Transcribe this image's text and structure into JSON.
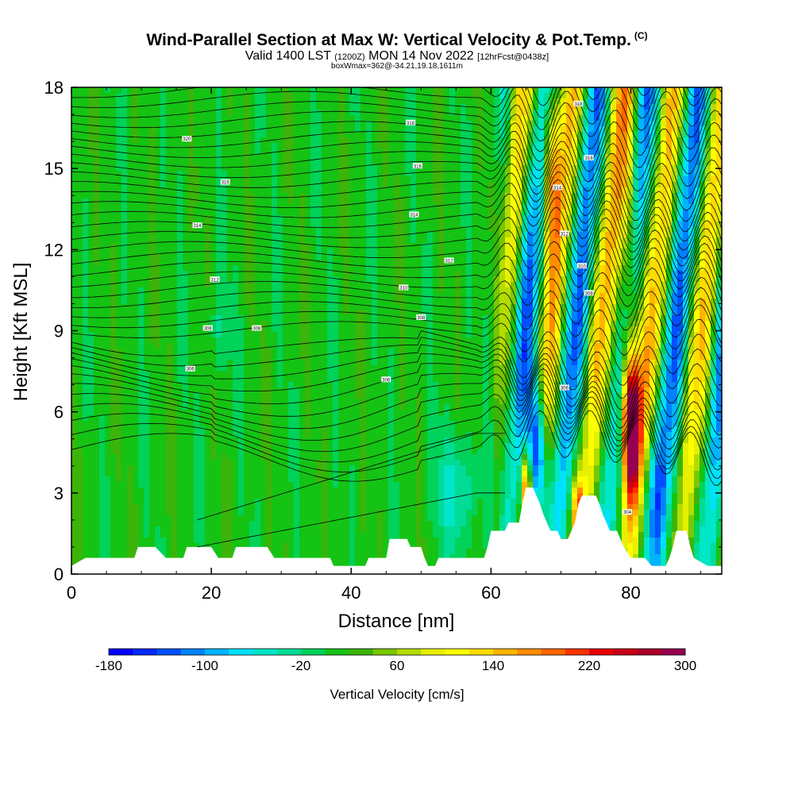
{
  "title": {
    "main": "Wind-Parallel Section at Max W: Vertical Velocity & Pot.Temp.",
    "copyright": "(C)",
    "valid_prefix": "Valid 1400 LST",
    "valid_utc": "(1200Z)",
    "valid_date": "MON 14 Nov 2022",
    "forecast": "[12hrFcst@0438z]",
    "box": "boxWmax=362@-34.21,19.18,1611m"
  },
  "chart_data": {
    "type": "contour-section",
    "xlabel": "Distance [nm]",
    "ylabel": "Height [Kft MSL]",
    "xlim": [
      0,
      93
    ],
    "ylim": [
      0,
      18
    ],
    "x_ticks": [
      0,
      20,
      40,
      60,
      80
    ],
    "y_ticks": [
      0,
      3,
      6,
      9,
      12,
      15,
      18
    ],
    "colorbar": {
      "label": "Vertical Velocity [cm/s]",
      "min": -180,
      "max": 300,
      "tick_labels": [
        -180,
        -100,
        -20,
        60,
        140,
        220,
        300
      ],
      "colors": [
        "#0000ff",
        "#0028ff",
        "#0050ff",
        "#0082ff",
        "#00b4ff",
        "#00e1ff",
        "#00e6c8",
        "#00dc96",
        "#00d25a",
        "#14c314",
        "#3cb40a",
        "#78c800",
        "#b4dc00",
        "#e6f000",
        "#ffff00",
        "#ffdc00",
        "#ffb400",
        "#ff8c00",
        "#ff6400",
        "#ff3200",
        "#e60000",
        "#c80014",
        "#aa0028",
        "#960050"
      ]
    },
    "terrain": [
      [
        0,
        0.3
      ],
      [
        2,
        0.6
      ],
      [
        9,
        0.6
      ],
      [
        9.5,
        1.0
      ],
      [
        12,
        1.0
      ],
      [
        13.5,
        0.6
      ],
      [
        16,
        0.6
      ],
      [
        16.5,
        1.0
      ],
      [
        20,
        1.0
      ],
      [
        21,
        0.6
      ],
      [
        23,
        0.6
      ],
      [
        23.5,
        1.0
      ],
      [
        28,
        1.0
      ],
      [
        29,
        0.6
      ],
      [
        37,
        0.6
      ],
      [
        37.5,
        0.3
      ],
      [
        40,
        0.3
      ],
      [
        42,
        0.3
      ],
      [
        42.5,
        0.6
      ],
      [
        45,
        0.6
      ],
      [
        45.5,
        1.3
      ],
      [
        48,
        1.3
      ],
      [
        48.5,
        1.0
      ],
      [
        50,
        1.0
      ],
      [
        50.5,
        0.6
      ],
      [
        51,
        0.3
      ],
      [
        52,
        0.3
      ],
      [
        52.5,
        0.6
      ],
      [
        59,
        0.6
      ],
      [
        59.5,
        1.0
      ],
      [
        60,
        1.6
      ],
      [
        62,
        1.6
      ],
      [
        62.5,
        1.9
      ],
      [
        64,
        1.9
      ],
      [
        64.5,
        2.6
      ],
      [
        65,
        3.2
      ],
      [
        66,
        3.2
      ],
      [
        66.5,
        2.9
      ],
      [
        67,
        2.6
      ],
      [
        67.5,
        2.2
      ],
      [
        68,
        1.9
      ],
      [
        68.5,
        1.6
      ],
      [
        69,
        1.6
      ],
      [
        69.5,
        1.6
      ],
      [
        70,
        1.3
      ],
      [
        71,
        1.3
      ],
      [
        71.5,
        1.6
      ],
      [
        72,
        1.9
      ],
      [
        72.5,
        2.6
      ],
      [
        73,
        2.9
      ],
      [
        75,
        2.9
      ],
      [
        75.5,
        2.6
      ],
      [
        76,
        2.2
      ],
      [
        76.5,
        1.9
      ],
      [
        77,
        1.6
      ],
      [
        78,
        1.6
      ],
      [
        78.5,
        1.3
      ],
      [
        79,
        1.0
      ],
      [
        80,
        0.6
      ],
      [
        82,
        0.6
      ],
      [
        83,
        0.3
      ],
      [
        85,
        0.3
      ],
      [
        85.5,
        0.6
      ],
      [
        86,
        1.0
      ],
      [
        86.5,
        1.6
      ],
      [
        88,
        1.6
      ],
      [
        88.5,
        1.0
      ],
      [
        89,
        0.6
      ],
      [
        91,
        0.3
      ],
      [
        93,
        0.3
      ]
    ],
    "isentrope_labels": [
      {
        "text": "320",
        "x": 16.5,
        "y": 16.1
      },
      {
        "text": "318",
        "x": 48.5,
        "y": 16.7
      },
      {
        "text": "318",
        "x": 72.5,
        "y": 17.4
      },
      {
        "text": "316",
        "x": 22.0,
        "y": 14.5
      },
      {
        "text": "316",
        "x": 49.5,
        "y": 15.1
      },
      {
        "text": "316",
        "x": 74.0,
        "y": 15.4
      },
      {
        "text": "314",
        "x": 18.0,
        "y": 12.9
      },
      {
        "text": "314",
        "x": 49.0,
        "y": 13.3
      },
      {
        "text": "314",
        "x": 69.5,
        "y": 14.3
      },
      {
        "text": "312",
        "x": 20.5,
        "y": 10.9
      },
      {
        "text": "312",
        "x": 54.0,
        "y": 11.6
      },
      {
        "text": "312",
        "x": 70.5,
        "y": 12.6
      },
      {
        "text": "310",
        "x": 47.5,
        "y": 10.6
      },
      {
        "text": "310",
        "x": 73.0,
        "y": 11.4
      },
      {
        "text": "308",
        "x": 19.5,
        "y": 9.1
      },
      {
        "text": "308",
        "x": 26.5,
        "y": 9.1
      },
      {
        "text": "308",
        "x": 50.0,
        "y": 9.5
      },
      {
        "text": "308",
        "x": 74.0,
        "y": 10.4
      },
      {
        "text": "306",
        "x": 17.0,
        "y": 7.6
      },
      {
        "text": "306",
        "x": 45.0,
        "y": 7.2
      },
      {
        "text": "306",
        "x": 70.5,
        "y": 6.9
      },
      {
        "text": "304",
        "x": 79.5,
        "y": 2.3
      }
    ]
  }
}
